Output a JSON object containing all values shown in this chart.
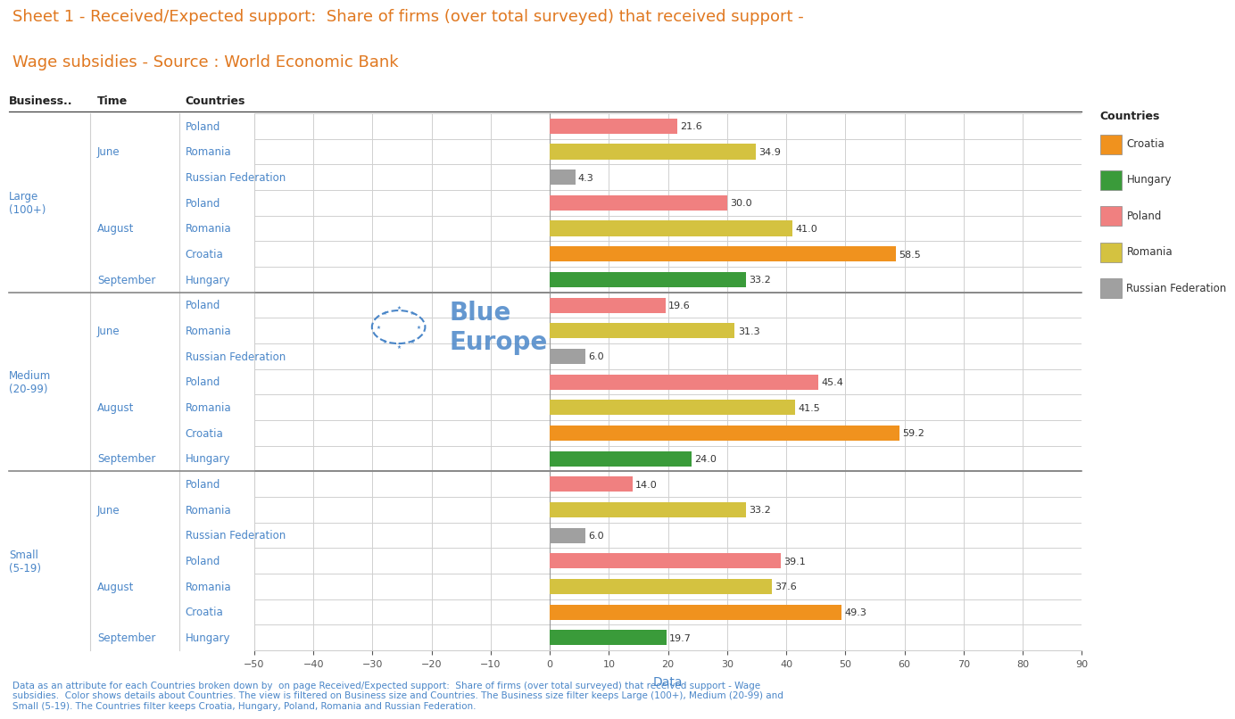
{
  "title_line1": "Sheet 1 - Received/Expected support:  Share of firms (over total surveyed) that received support -",
  "title_line2": "Wage subsidies - Source : World Economic Bank",
  "title_color": "#e07820",
  "label_color": "#4a86c8",
  "header_color": "#333333",
  "xlabel": "Data",
  "xlim": [
    -50,
    90
  ],
  "xticks": [
    -50,
    -40,
    -30,
    -20,
    -10,
    0,
    10,
    20,
    30,
    40,
    50,
    60,
    70,
    80,
    90
  ],
  "footer_text": "Data as an attribute for each Countries broken down by  on page Received/Expected support:  Share of firms (over total surveyed) that received support - Wage\nsubsidies.  Color shows details about Countries. The view is filtered on Business size and Countries. The Business size filter keeps Large (100+), Medium (20-99) and\nSmall (5-19). The Countries filter keeps Croatia, Hungary, Poland, Romania and Russian Federation.",
  "colors": {
    "Croatia": "#f0921e",
    "Hungary": "#3a9b3a",
    "Poland": "#f08080",
    "Romania": "#d4c240",
    "Russian Federation": "#a0a0a0"
  },
  "legend_order": [
    "Croatia",
    "Hungary",
    "Poland",
    "Romania",
    "Russian Federation"
  ],
  "rows": [
    {
      "business": "Large\n(100+)",
      "time": "June",
      "country": "Poland",
      "value": 21.6
    },
    {
      "business": "Large\n(100+)",
      "time": "June",
      "country": "Romania",
      "value": 34.9
    },
    {
      "business": "Large\n(100+)",
      "time": "June",
      "country": "Russian Federation",
      "value": 4.3
    },
    {
      "business": "Large\n(100+)",
      "time": "August",
      "country": "Poland",
      "value": 30.0
    },
    {
      "business": "Large\n(100+)",
      "time": "August",
      "country": "Romania",
      "value": 41.0
    },
    {
      "business": "Large\n(100+)",
      "time": "September",
      "country": "Croatia",
      "value": 58.5
    },
    {
      "business": "Large\n(100+)",
      "time": "September",
      "country": "Hungary",
      "value": 33.2
    },
    {
      "business": "Medium\n(20-99)",
      "time": "June",
      "country": "Poland",
      "value": 19.6
    },
    {
      "business": "Medium\n(20-99)",
      "time": "June",
      "country": "Romania",
      "value": 31.3
    },
    {
      "business": "Medium\n(20-99)",
      "time": "June",
      "country": "Russian Federation",
      "value": 6.0
    },
    {
      "business": "Medium\n(20-99)",
      "time": "August",
      "country": "Poland",
      "value": 45.4
    },
    {
      "business": "Medium\n(20-99)",
      "time": "August",
      "country": "Romania",
      "value": 41.5
    },
    {
      "business": "Medium\n(20-99)",
      "time": "September",
      "country": "Croatia",
      "value": 59.2
    },
    {
      "business": "Medium\n(20-99)",
      "time": "September",
      "country": "Hungary",
      "value": 24.0
    },
    {
      "business": "Small\n(5-19)",
      "time": "June",
      "country": "Poland",
      "value": 14.0
    },
    {
      "business": "Small\n(5-19)",
      "time": "June",
      "country": "Romania",
      "value": 33.2
    },
    {
      "business": "Small\n(5-19)",
      "time": "June",
      "country": "Russian Federation",
      "value": 6.0
    },
    {
      "business": "Small\n(5-19)",
      "time": "August",
      "country": "Poland",
      "value": 39.1
    },
    {
      "business": "Small\n(5-19)",
      "time": "August",
      "country": "Romania",
      "value": 37.6
    },
    {
      "business": "Small\n(5-19)",
      "time": "September",
      "country": "Croatia",
      "value": 49.3
    },
    {
      "business": "Small\n(5-19)",
      "time": "September",
      "country": "Hungary",
      "value": 19.7
    }
  ],
  "bar_height": 0.6,
  "grid_color": "#d0d0d0",
  "background_color": "#ffffff",
  "group_sep_color": "#888888",
  "value_label_color": "#333333",
  "watermark_color": "#4a86c8"
}
